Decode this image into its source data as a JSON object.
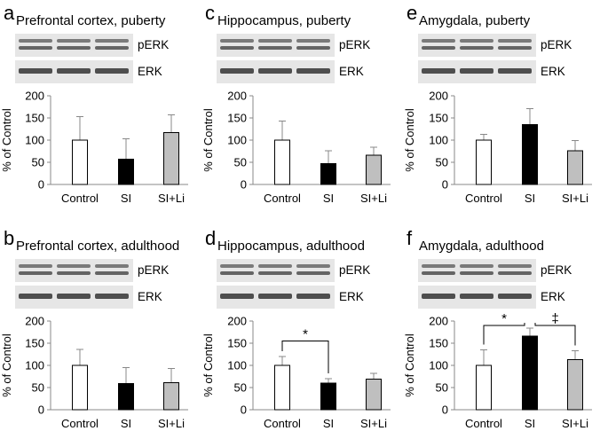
{
  "figure": {
    "blot_labels": [
      "pERK",
      "ERK"
    ],
    "colors": {
      "Control": "#ffffff",
      "SI": "#000000",
      "SI+Li": "#bfbfbf"
    }
  },
  "chart_data": [
    {
      "panel": "a",
      "title": "Prefrontal cortex, puberty",
      "type": "bar",
      "categories": [
        "Control",
        "SI",
        "SI+Li"
      ],
      "values": [
        100,
        57,
        117
      ],
      "errors": [
        53,
        46,
        40
      ],
      "ylabel": "% of Control",
      "ylim": [
        0,
        200
      ],
      "yticks": [
        0,
        50,
        100,
        150,
        200
      ],
      "significance": []
    },
    {
      "panel": "c",
      "title": "Hippocampus, puberty",
      "type": "bar",
      "categories": [
        "Control",
        "SI",
        "SI+Li"
      ],
      "values": [
        100,
        47,
        66
      ],
      "errors": [
        43,
        29,
        18
      ],
      "ylabel": "% of Control",
      "ylim": [
        0,
        200
      ],
      "yticks": [
        0,
        50,
        100,
        150,
        200
      ],
      "significance": []
    },
    {
      "panel": "e",
      "title": "Amygdala, puberty",
      "type": "bar",
      "categories": [
        "Control",
        "SI",
        "SI+Li"
      ],
      "values": [
        100,
        135,
        76
      ],
      "errors": [
        13,
        36,
        23
      ],
      "ylabel": "% of Control",
      "ylim": [
        0,
        200
      ],
      "yticks": [
        0,
        50,
        100,
        150,
        200
      ],
      "significance": []
    },
    {
      "panel": "b",
      "title": "Prefrontal cortex, adulthood",
      "type": "bar",
      "categories": [
        "Control",
        "SI",
        "SI+Li"
      ],
      "values": [
        100,
        59,
        61
      ],
      "errors": [
        36,
        36,
        32
      ],
      "ylabel": "% of Control",
      "ylim": [
        0,
        200
      ],
      "yticks": [
        0,
        50,
        100,
        150,
        200
      ],
      "significance": []
    },
    {
      "panel": "d",
      "title": "Hippocampus, adulthood",
      "type": "bar",
      "categories": [
        "Control",
        "SI",
        "SI+Li"
      ],
      "values": [
        100,
        60,
        69
      ],
      "errors": [
        20,
        10,
        13
      ],
      "ylabel": "% of Control",
      "ylim": [
        0,
        200
      ],
      "yticks": [
        0,
        50,
        100,
        150,
        200
      ],
      "significance": [
        {
          "from": 0,
          "to": 1,
          "label": "*",
          "y": 155
        }
      ]
    },
    {
      "panel": "f",
      "title": "Amygdala, adulthood",
      "type": "bar",
      "categories": [
        "Control",
        "SI",
        "SI+Li"
      ],
      "values": [
        100,
        166,
        113
      ],
      "errors": [
        35,
        18,
        20
      ],
      "ylabel": "% of Control",
      "ylim": [
        0,
        200
      ],
      "yticks": [
        0,
        50,
        100,
        150,
        200
      ],
      "significance": [
        {
          "from": 0,
          "to": 1,
          "label": "*",
          "y": 190
        },
        {
          "from": 1,
          "to": 2,
          "label": "‡",
          "y": 190
        }
      ]
    }
  ]
}
